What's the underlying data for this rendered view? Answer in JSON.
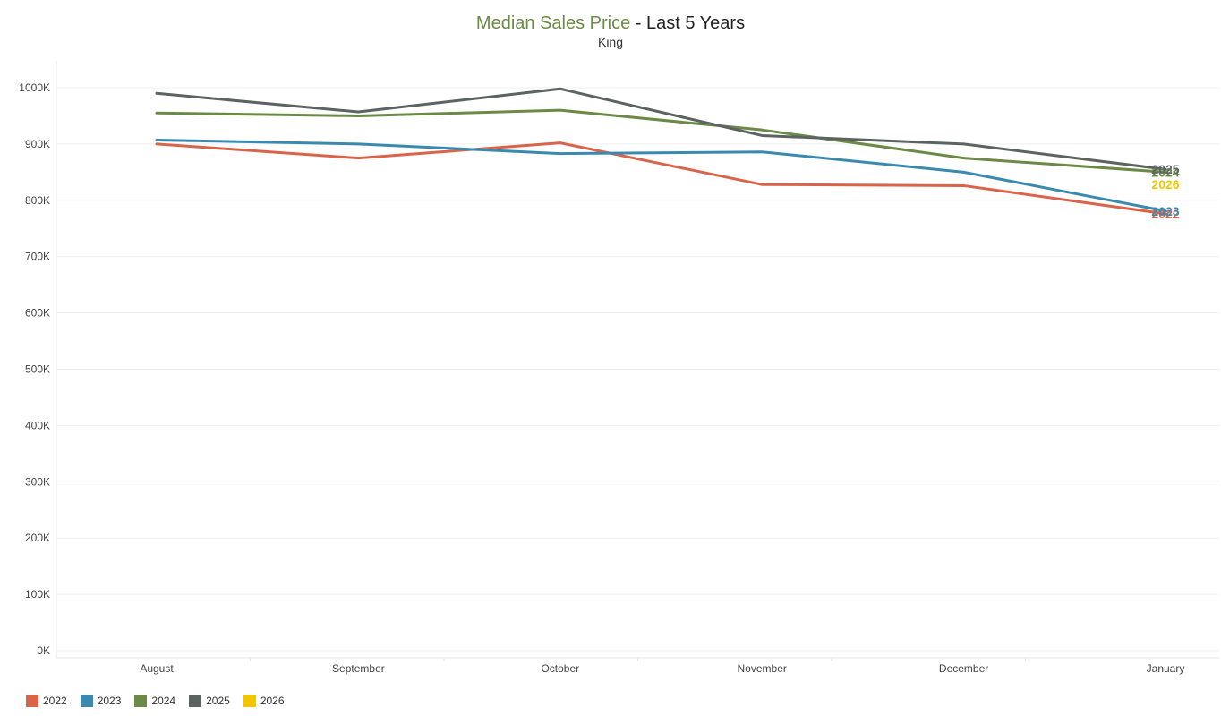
{
  "title": {
    "main": "Median Sales Price",
    "suffix": " - Last 5 Years",
    "subtitle": "King"
  },
  "colors": {
    "title_accent": "#6b8a45",
    "grid": "#efefef"
  },
  "chart_data": {
    "type": "line",
    "title": "Median Sales Price - Last 5 Years",
    "subtitle": "King",
    "categories": [
      "August",
      "September",
      "October",
      "November",
      "December",
      "January"
    ],
    "ylim": [
      0,
      1000000
    ],
    "yticks": [
      0,
      100000,
      200000,
      300000,
      400000,
      500000,
      600000,
      700000,
      800000,
      900000,
      1000000
    ],
    "ytick_labels": [
      "0K",
      "100K",
      "200K",
      "300K",
      "400K",
      "500K",
      "600K",
      "700K",
      "800K",
      "900K",
      "1000K"
    ],
    "grid": true,
    "legend_position": "bottom-left",
    "series": [
      {
        "name": "2022",
        "color": "#d9644a",
        "values": [
          900000,
          875000,
          902000,
          828000,
          826000,
          776000
        ],
        "end_label": "2022"
      },
      {
        "name": "2023",
        "color": "#3a8ab0",
        "values": [
          907000,
          900000,
          883000,
          886000,
          850000,
          781000
        ],
        "end_label": "2023"
      },
      {
        "name": "2024",
        "color": "#6b8a45",
        "values": [
          955000,
          950000,
          960000,
          925000,
          875000,
          850000
        ],
        "end_label": "2024"
      },
      {
        "name": "2025",
        "color": "#5c6462",
        "values": [
          990000,
          957000,
          998000,
          915000,
          900000,
          855000
        ],
        "end_label": "2025"
      },
      {
        "name": "2026",
        "color": "#f2c500",
        "values": [
          null,
          null,
          null,
          null,
          null,
          null
        ],
        "end_label": "2026",
        "end_label_value": 828000
      }
    ]
  }
}
